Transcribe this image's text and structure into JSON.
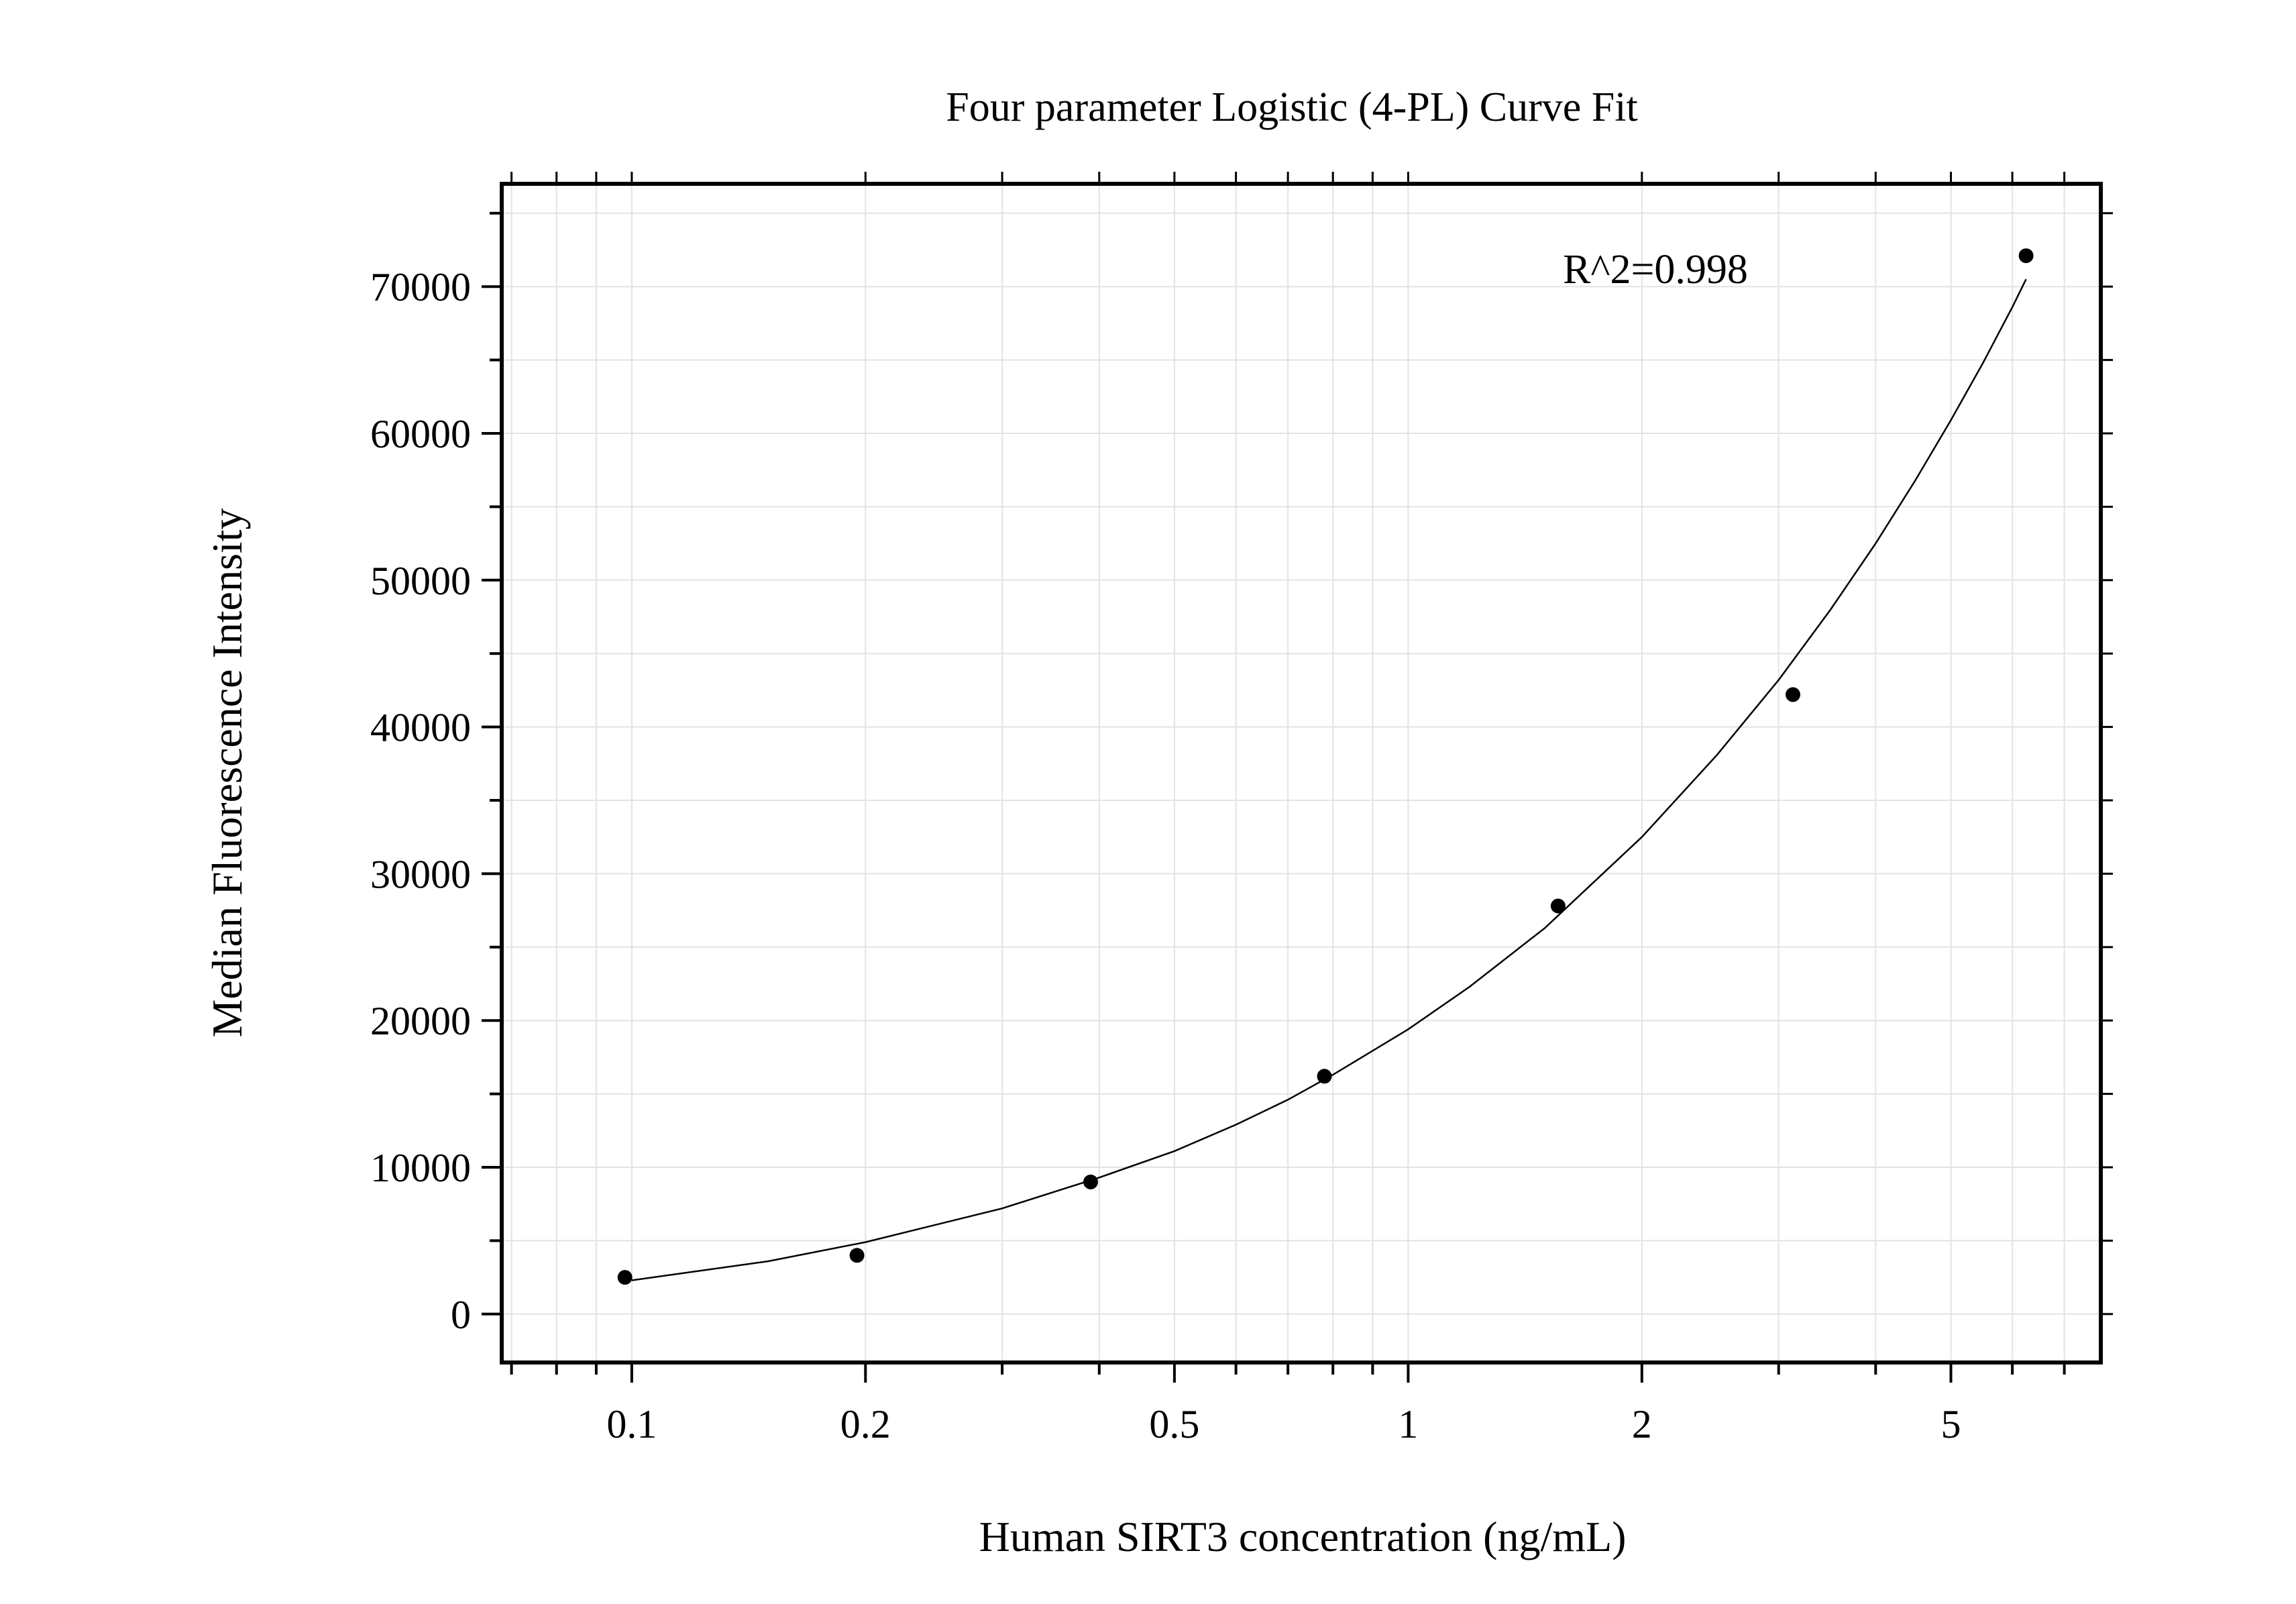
{
  "chart_data": {
    "type": "scatter",
    "title": "Four parameter Logistic (4-PL) Curve Fit",
    "xlabel": "Human SIRT3 concentration (ng/mL)",
    "ylabel": "Median Fluorescence Intensity",
    "x_scale": "log",
    "xlim": [
      0.068,
      7.8
    ],
    "ylim": [
      -3300,
      77000
    ],
    "x_ticks": [
      0.1,
      0.2,
      0.5,
      1,
      2,
      5
    ],
    "x_tick_labels": [
      "0.1",
      "0.2",
      "0.5",
      "1",
      "2",
      "5"
    ],
    "y_ticks": [
      0,
      10000,
      20000,
      30000,
      40000,
      50000,
      60000,
      70000
    ],
    "y_tick_labels": [
      "0",
      "10000",
      "20000",
      "30000",
      "40000",
      "50000",
      "60000",
      "70000"
    ],
    "grid": true,
    "annotation": "R^2=0.998",
    "points": {
      "x": [
        0.098,
        0.195,
        0.39,
        0.78,
        1.56,
        3.13,
        6.25
      ],
      "y": [
        2500,
        4000,
        9000,
        16200,
        27800,
        42200,
        72100
      ]
    },
    "fit_curve": {
      "x": [
        0.1,
        0.15,
        0.2,
        0.3,
        0.4,
        0.5,
        0.6,
        0.7,
        0.8,
        1.0,
        1.2,
        1.5,
        2.0,
        2.5,
        3.0,
        3.5,
        4.0,
        4.5,
        5.0,
        5.5,
        6.0,
        6.25
      ],
      "y": [
        2300,
        3600,
        4900,
        7200,
        9300,
        11100,
        12900,
        14600,
        16300,
        19400,
        22300,
        26300,
        32500,
        38100,
        43200,
        48000,
        52500,
        56800,
        60900,
        64800,
        68600,
        70500
      ]
    }
  }
}
